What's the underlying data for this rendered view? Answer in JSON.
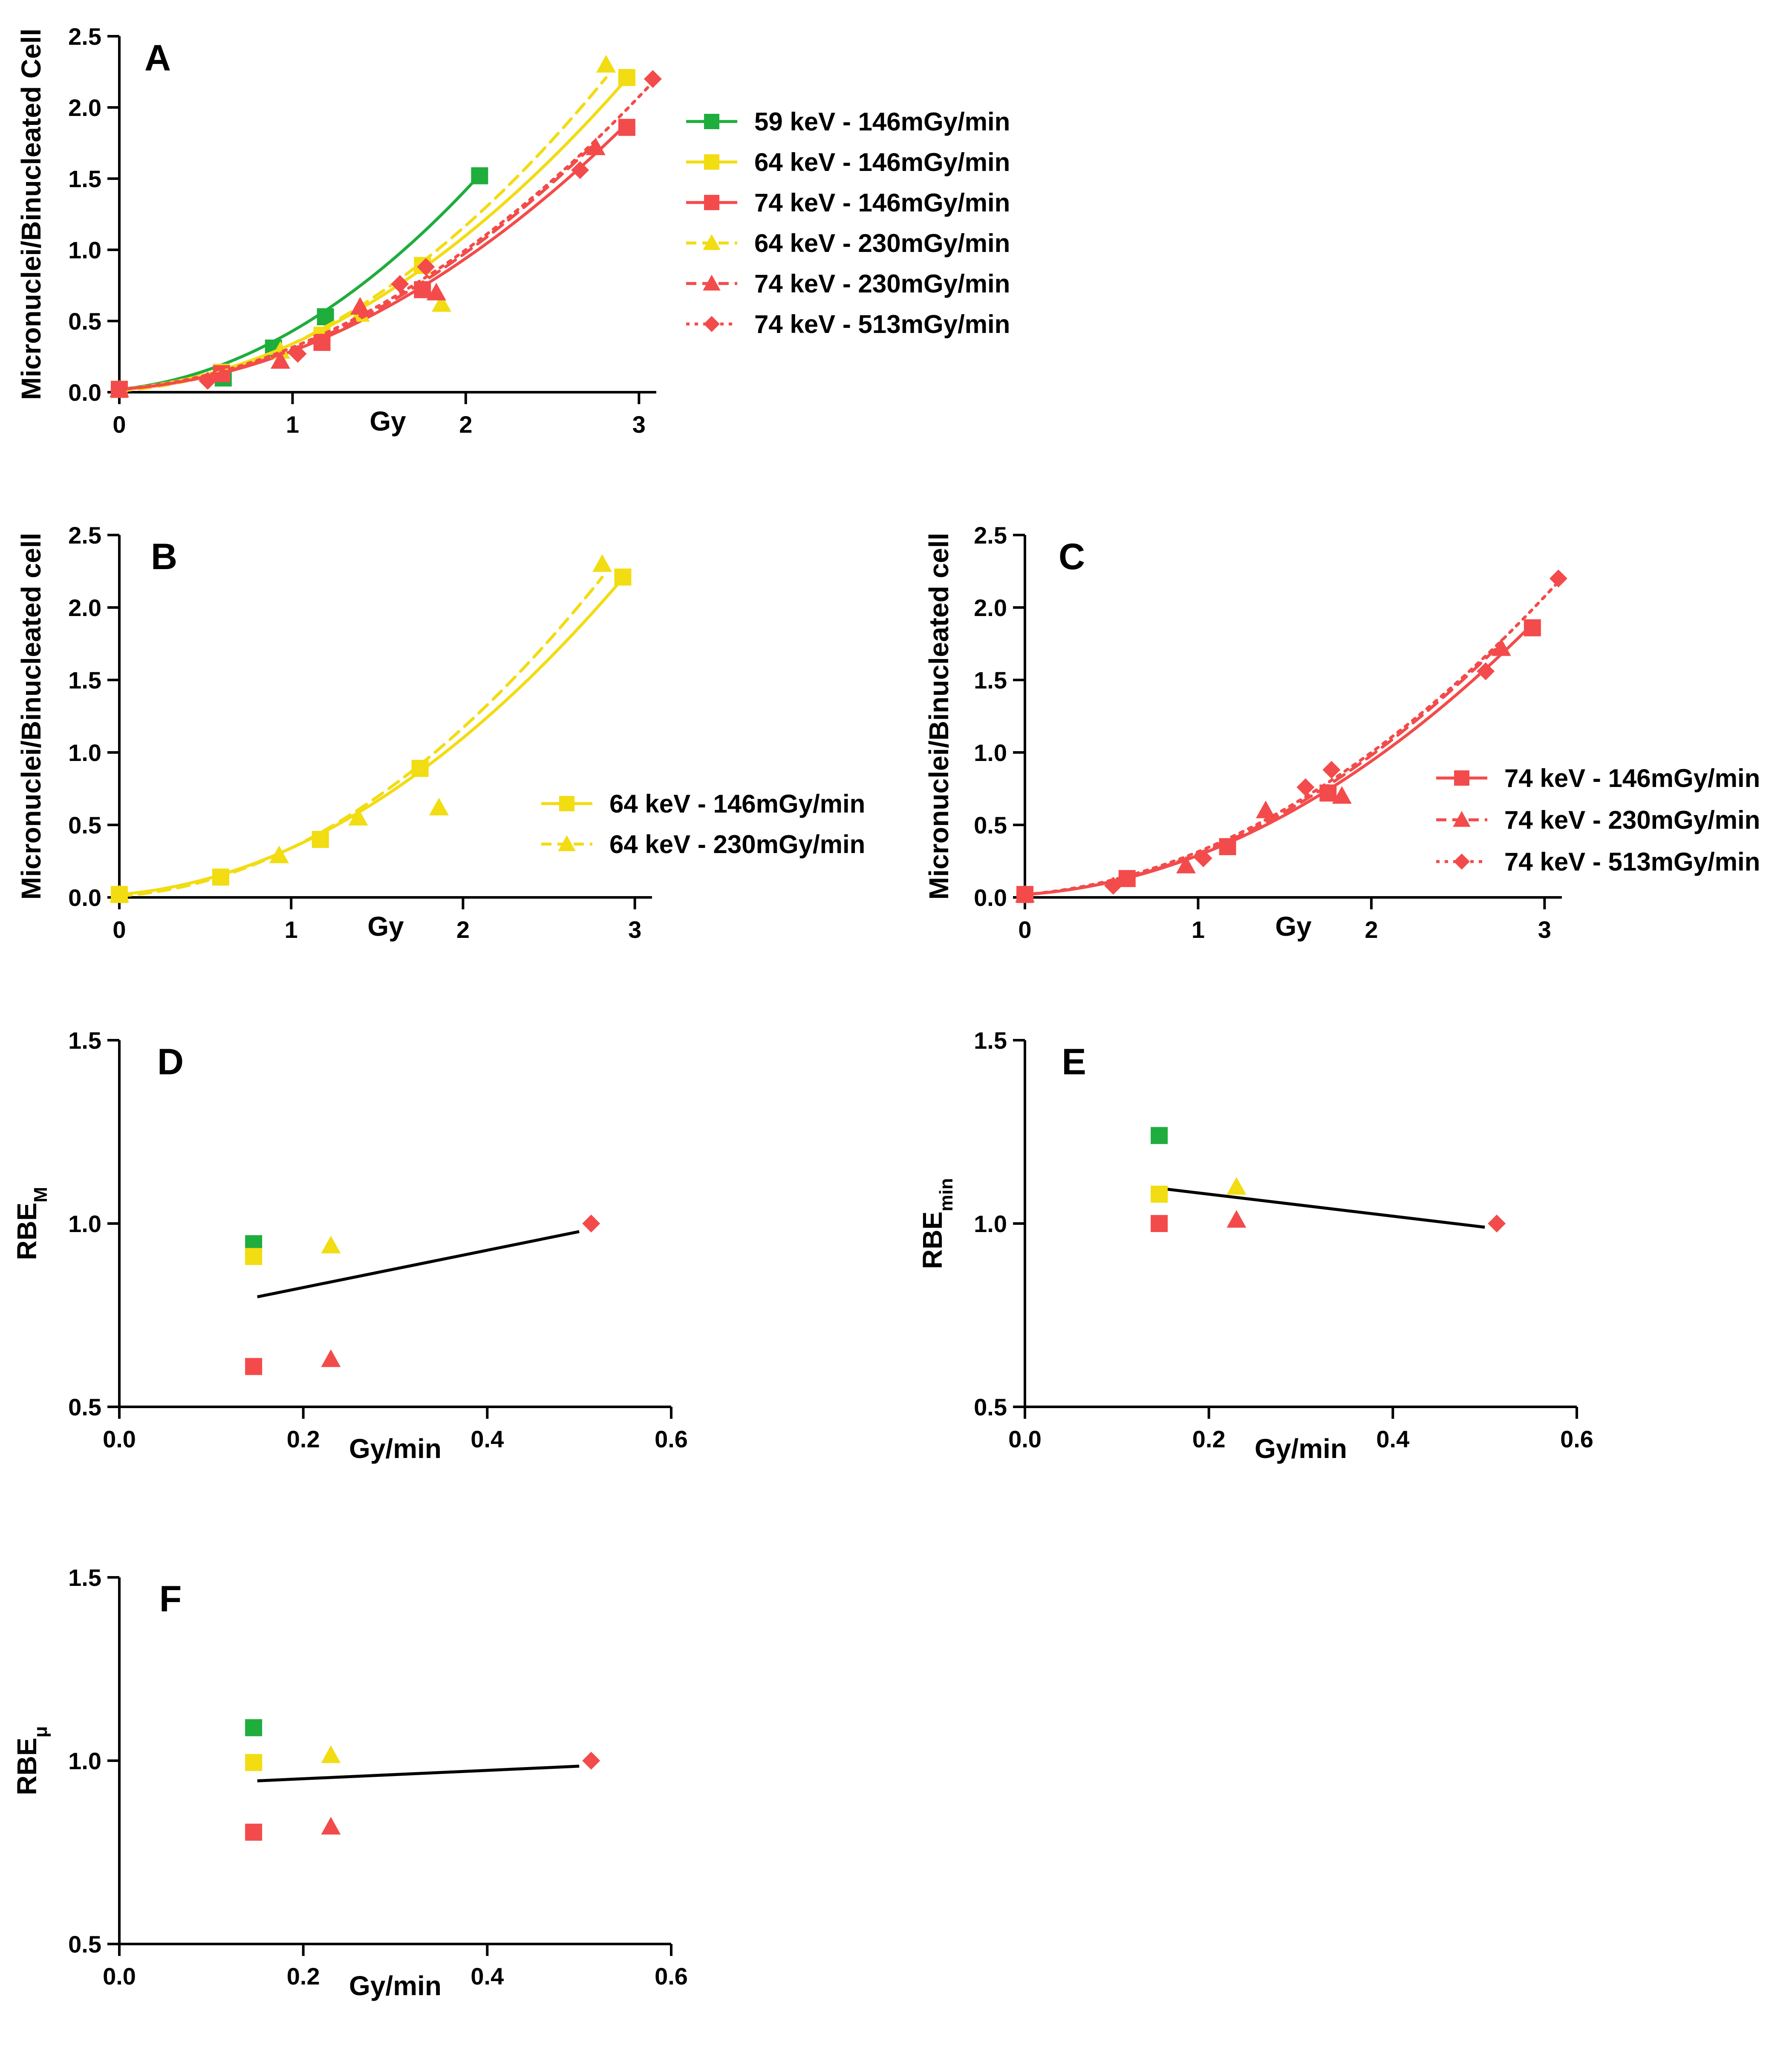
{
  "colors": {
    "green": "#1fad3d",
    "yellow": "#f2dc12",
    "red": "#f34b4b",
    "black": "#000000"
  },
  "chart_data": [
    {
      "id": "A",
      "type": "line",
      "panel_label": "A",
      "xlabel": "Gy",
      "ylabel": "Micronuclei/Binucleated Cell",
      "xlim": [
        0,
        3.1
      ],
      "ylim": [
        0,
        2.5
      ],
      "xticks": [
        "0",
        "1",
        "2",
        "3"
      ],
      "yticks": [
        "0.0",
        "0.5",
        "1.0",
        "1.5",
        "2.0",
        "2.5"
      ],
      "legend_position": "right",
      "series": [
        {
          "name": "59 keV - 146mGy/min",
          "color": "green",
          "marker": "square",
          "line": "solid",
          "x": [
            0,
            0.6,
            0.89,
            1.19,
            2.08
          ],
          "y": [
            0.02,
            0.1,
            0.31,
            0.53,
            1.52
          ],
          "fit_x": [
            0,
            2.08
          ],
          "fit": {
            "a": 0.02,
            "b": 0.12,
            "c": 0.29
          }
        },
        {
          "name": "64 keV - 146mGy/min",
          "color": "yellow",
          "marker": "square",
          "line": "solid",
          "x": [
            0,
            0.59,
            1.17,
            1.75,
            2.93
          ],
          "y": [
            0.02,
            0.14,
            0.4,
            0.89,
            2.21
          ],
          "fit_x": [
            0,
            2.93
          ],
          "fit": {
            "a": 0.02,
            "b": 0.1,
            "c": 0.22
          }
        },
        {
          "name": "74 keV - 146mGy/min",
          "color": "red",
          "marker": "square",
          "line": "solid",
          "x": [
            0,
            0.59,
            1.17,
            1.75,
            2.93
          ],
          "y": [
            0.02,
            0.13,
            0.35,
            0.72,
            1.86
          ],
          "fit_x": [
            0,
            2.93
          ],
          "fit": {
            "a": 0.02,
            "b": 0.08,
            "c": 0.19
          }
        },
        {
          "name": "64 keV - 230mGy/min",
          "color": "yellow",
          "marker": "triangle",
          "line": "dashed",
          "x": [
            0,
            0.93,
            1.39,
            1.86,
            2.81
          ],
          "y": [
            0.02,
            0.29,
            0.55,
            0.62,
            2.3
          ],
          "fit_x": [
            0,
            2.81
          ],
          "fit": {
            "a": 0.01,
            "b": 0.08,
            "c": 0.25
          }
        },
        {
          "name": "74 keV - 230mGy/min",
          "color": "red",
          "marker": "triangle",
          "line": "dashed",
          "x": [
            0,
            0.93,
            1.39,
            1.83,
            2.75
          ],
          "y": [
            0.02,
            0.22,
            0.6,
            0.7,
            1.72
          ],
          "fit_x": [
            0,
            2.75
          ],
          "fit": {
            "a": 0.02,
            "b": 0.08,
            "c": 0.2
          }
        },
        {
          "name": "74 keV - 513mGy/min",
          "color": "red",
          "marker": "diamond",
          "line": "dotted",
          "x": [
            0,
            0.51,
            1.03,
            1.62,
            1.77,
            2.66,
            3.08
          ],
          "y": [
            0.02,
            0.08,
            0.27,
            0.76,
            0.88,
            1.56,
            2.2
          ],
          "fit_x": [
            0,
            3.08
          ],
          "fit": {
            "a": 0.02,
            "b": 0.1,
            "c": 0.195
          }
        }
      ]
    },
    {
      "id": "B",
      "type": "line",
      "panel_label": "B",
      "xlabel": "Gy",
      "ylabel": "Micronuclei/Binucleated cell",
      "xlim": [
        0,
        3.1
      ],
      "ylim": [
        0,
        2.5
      ],
      "xticks": [
        "0",
        "1",
        "2",
        "3"
      ],
      "yticks": [
        "0.0",
        "0.5",
        "1.0",
        "1.5",
        "2.0",
        "2.5"
      ],
      "legend_position": "right",
      "series": [
        {
          "name": "64 keV - 146mGy/min",
          "color": "yellow",
          "marker": "square",
          "line": "solid",
          "x": [
            0,
            0.59,
            1.17,
            1.75,
            2.93
          ],
          "y": [
            0.02,
            0.14,
            0.4,
            0.89,
            2.21
          ],
          "fit_x": [
            0,
            2.93
          ],
          "fit": {
            "a": 0.02,
            "b": 0.1,
            "c": 0.22
          }
        },
        {
          "name": "64 keV - 230mGy/min",
          "color": "yellow",
          "marker": "triangle",
          "line": "dashed",
          "x": [
            0,
            0.93,
            1.39,
            1.86,
            2.81
          ],
          "y": [
            0.02,
            0.29,
            0.55,
            0.62,
            2.3
          ],
          "fit_x": [
            0,
            2.81
          ],
          "fit": {
            "a": 0.01,
            "b": 0.08,
            "c": 0.25
          }
        }
      ]
    },
    {
      "id": "C",
      "type": "line",
      "panel_label": "C",
      "xlabel": "Gy",
      "ylabel": "Micronuclei/Binucleated cell",
      "xlim": [
        0,
        3.1
      ],
      "ylim": [
        0,
        2.5
      ],
      "xticks": [
        "0",
        "1",
        "2",
        "3"
      ],
      "yticks": [
        "0.0",
        "0.5",
        "1.0",
        "1.5",
        "2.0",
        "2.5"
      ],
      "legend_position": "right",
      "series": [
        {
          "name": "74 keV - 146mGy/min",
          "color": "red",
          "marker": "square",
          "line": "solid",
          "x": [
            0,
            0.59,
            1.17,
            1.75,
            2.93
          ],
          "y": [
            0.02,
            0.13,
            0.35,
            0.72,
            1.86
          ],
          "fit_x": [
            0,
            2.93
          ],
          "fit": {
            "a": 0.02,
            "b": 0.08,
            "c": 0.19
          }
        },
        {
          "name": "74 keV - 230mGy/min",
          "color": "red",
          "marker": "triangle",
          "line": "dashed",
          "x": [
            0,
            0.93,
            1.39,
            1.83,
            2.75
          ],
          "y": [
            0.02,
            0.22,
            0.6,
            0.7,
            1.72
          ],
          "fit_x": [
            0,
            2.75
          ],
          "fit": {
            "a": 0.02,
            "b": 0.08,
            "c": 0.2
          }
        },
        {
          "name": "74 keV - 513mGy/min",
          "color": "red",
          "marker": "diamond",
          "line": "dotted",
          "x": [
            0,
            0.51,
            1.03,
            1.62,
            1.77,
            2.66,
            3.08
          ],
          "y": [
            0.02,
            0.08,
            0.27,
            0.76,
            0.88,
            1.56,
            2.2
          ],
          "fit_x": [
            0,
            3.08
          ],
          "fit": {
            "a": 0.02,
            "b": 0.1,
            "c": 0.195
          }
        }
      ]
    },
    {
      "id": "D",
      "type": "scatter",
      "panel_label": "D",
      "xlabel": "Gy/min",
      "ylabel": "RBE",
      "ylabel_sub": "M",
      "xlim": [
        0,
        0.6
      ],
      "ylim": [
        0.5,
        1.5
      ],
      "xticks": [
        "0.0",
        "0.2",
        "0.4",
        "0.6"
      ],
      "yticks": [
        "0.5",
        "1.0",
        "1.5"
      ],
      "points": [
        {
          "x": 0.146,
          "y": 0.945,
          "color": "green",
          "marker": "square"
        },
        {
          "x": 0.146,
          "y": 0.91,
          "color": "yellow",
          "marker": "square"
        },
        {
          "x": 0.146,
          "y": 0.61,
          "color": "red",
          "marker": "square"
        },
        {
          "x": 0.23,
          "y": 0.94,
          "color": "yellow",
          "marker": "triangle"
        },
        {
          "x": 0.23,
          "y": 0.63,
          "color": "red",
          "marker": "triangle"
        },
        {
          "x": 0.513,
          "y": 1.0,
          "color": "red",
          "marker": "diamond"
        }
      ],
      "trend": {
        "x": [
          0.15,
          0.5
        ],
        "y": [
          0.8,
          0.978
        ]
      }
    },
    {
      "id": "E",
      "type": "scatter",
      "panel_label": "E",
      "xlabel": "Gy/min",
      "ylabel": "RBE",
      "ylabel_sub": "min",
      "xlim": [
        0,
        0.6
      ],
      "ylim": [
        0.5,
        1.5
      ],
      "xticks": [
        "0.0",
        "0.2",
        "0.4",
        "0.6"
      ],
      "yticks": [
        "0.5",
        "1.0",
        "1.5"
      ],
      "points": [
        {
          "x": 0.146,
          "y": 1.24,
          "color": "green",
          "marker": "square"
        },
        {
          "x": 0.146,
          "y": 1.08,
          "color": "yellow",
          "marker": "square"
        },
        {
          "x": 0.146,
          "y": 1.0,
          "color": "red",
          "marker": "square"
        },
        {
          "x": 0.23,
          "y": 1.1,
          "color": "yellow",
          "marker": "triangle"
        },
        {
          "x": 0.23,
          "y": 1.01,
          "color": "red",
          "marker": "triangle"
        },
        {
          "x": 0.513,
          "y": 1.0,
          "color": "red",
          "marker": "diamond"
        }
      ],
      "trend": {
        "x": [
          0.15,
          0.5
        ],
        "y": [
          1.095,
          0.99
        ]
      }
    },
    {
      "id": "F",
      "type": "scatter",
      "panel_label": "F",
      "xlabel": "Gy/min",
      "ylabel": "RBE",
      "ylabel_sub": "μ",
      "xlim": [
        0,
        0.6
      ],
      "ylim": [
        0.5,
        1.5
      ],
      "xticks": [
        "0.0",
        "0.2",
        "0.4",
        "0.6"
      ],
      "yticks": [
        "0.5",
        "1.0",
        "1.5"
      ],
      "points": [
        {
          "x": 0.146,
          "y": 1.09,
          "color": "green",
          "marker": "square"
        },
        {
          "x": 0.146,
          "y": 0.995,
          "color": "yellow",
          "marker": "square"
        },
        {
          "x": 0.146,
          "y": 0.805,
          "color": "red",
          "marker": "square"
        },
        {
          "x": 0.23,
          "y": 1.015,
          "color": "yellow",
          "marker": "triangle"
        },
        {
          "x": 0.23,
          "y": 0.82,
          "color": "red",
          "marker": "triangle"
        },
        {
          "x": 0.513,
          "y": 1.0,
          "color": "red",
          "marker": "diamond"
        }
      ],
      "trend": {
        "x": [
          0.15,
          0.5
        ],
        "y": [
          0.945,
          0.985
        ]
      }
    }
  ]
}
